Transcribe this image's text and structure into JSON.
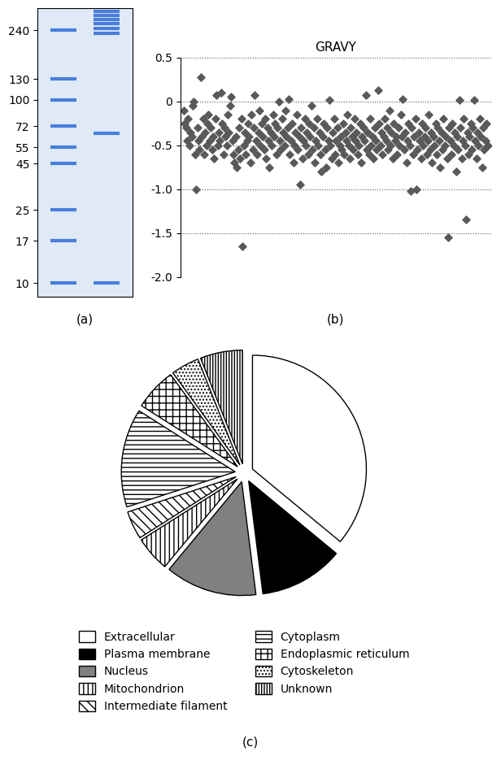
{
  "chart_data": [
    {
      "type": "gel",
      "caption": "(a)",
      "ladder": [
        240,
        130,
        100,
        72,
        55,
        45,
        25,
        17,
        10
      ],
      "sample_bands": [
        305,
        290,
        275,
        260,
        245,
        230,
        66,
        10
      ],
      "ylim": [
        8.4,
        316
      ],
      "yticks": [
        240,
        130,
        100,
        72,
        55,
        45,
        25,
        17,
        10
      ],
      "log": "y",
      "tick_labels": "y",
      "color": "#2f6bd6"
    },
    {
      "type": "scatter",
      "caption": "(b)",
      "title": "GRAVY",
      "values": [
        -0.1,
        -0.25,
        -0.3,
        -0.45,
        -0.2,
        -0.5,
        -0.35,
        -0.4,
        -0.05,
        0.0,
        -0.6,
        -1.0,
        -0.3,
        -0.45,
        -0.55,
        0.28,
        -0.4,
        -0.2,
        -0.6,
        -0.35,
        -0.5,
        -0.25,
        -0.15,
        -0.45,
        -0.3,
        -0.55,
        -0.4,
        -0.65,
        -0.2,
        0.07,
        -0.5,
        -0.35,
        -0.45,
        0.1,
        -0.25,
        -0.6,
        -0.3,
        -0.4,
        -0.5,
        -0.15,
        -0.35,
        -0.05,
        0.05,
        -0.45,
        -0.6,
        -0.7,
        -0.4,
        -0.75,
        -0.55,
        -0.3,
        -0.65,
        -0.2,
        -1.65,
        -0.5,
        -0.35,
        -0.6,
        -0.45,
        -0.25,
        -0.4,
        -0.7,
        -0.15,
        -0.55,
        -0.3,
        0.07,
        -0.45,
        -0.6,
        -0.35,
        -0.1,
        -0.5,
        -0.25,
        -0.4,
        -0.55,
        -0.2,
        -0.65,
        -0.3,
        -0.45,
        -0.75,
        -0.35,
        -0.5,
        -0.15,
        -0.4,
        -0.25,
        -0.6,
        -0.3,
        0.0,
        -0.45,
        -0.55,
        -0.2,
        -0.35,
        -0.5,
        -0.1,
        -0.4,
        -0.3,
        0.03,
        -0.6,
        -0.45,
        -0.25,
        -0.7,
        -0.5,
        -0.35,
        -0.15,
        -0.55,
        -0.4,
        -0.95,
        -0.3,
        -0.65,
        -0.45,
        -0.2,
        -0.5,
        -0.35,
        -0.6,
        -0.25,
        -0.4,
        -0.05,
        -0.55,
        -0.3,
        -0.7,
        -0.45,
        -0.2,
        -0.5,
        -0.35,
        -0.6,
        -0.8,
        -0.4,
        -0.25,
        -0.55,
        -0.75,
        -0.3,
        -0.45,
        0.02,
        -0.5,
        -0.65,
        -0.35,
        -0.2,
        -0.6,
        -0.45,
        -0.3,
        -0.7,
        -0.5,
        -0.4,
        -0.55,
        -0.25,
        -0.6,
        -0.35,
        -0.45,
        -0.15,
        -0.5,
        -0.65,
        -0.3,
        -0.4,
        -0.55,
        -0.2,
        -0.45,
        -0.35,
        -0.6,
        -0.5,
        -0.25,
        -0.7,
        -0.4,
        -0.3,
        -0.45,
        0.07,
        -0.55,
        -0.35,
        -0.6,
        -0.2,
        -0.5,
        -0.4,
        -0.65,
        -0.3,
        -0.45,
        -0.55,
        0.13,
        -0.25,
        -0.5,
        -0.35,
        -0.6,
        -0.4,
        -0.2,
        -0.45,
        -0.3,
        -0.55,
        -0.1,
        -0.5,
        -0.35,
        -0.65,
        -0.25,
        -0.45,
        -0.4,
        -0.6,
        -0.3,
        -0.5,
        -0.15,
        -0.4,
        0.03,
        -0.55,
        -0.35,
        -0.7,
        -0.45,
        -0.25,
        -0.5,
        -1.02,
        -0.3,
        -0.6,
        -0.4,
        -0.2,
        -1.0,
        -0.55,
        -0.35,
        -0.45,
        -0.65,
        -0.25,
        -0.5,
        -0.4,
        -0.3,
        -0.6,
        -0.45,
        -0.15,
        -0.55,
        -0.35,
        -0.7,
        -0.4,
        -0.5,
        -0.25,
        -0.6,
        -0.3,
        -0.45,
        -0.75,
        -0.35,
        -0.55,
        -0.2,
        -0.5,
        -0.4,
        -0.65,
        -1.55,
        -0.3,
        -0.45,
        -0.6,
        -0.25,
        -0.5,
        -0.35,
        -0.8,
        -0.4,
        -0.55,
        0.02,
        -0.3,
        -0.65,
        -0.45,
        -0.2,
        -0.5,
        -1.35,
        -0.35,
        -0.6,
        -0.4,
        -0.25,
        -0.55,
        -0.3,
        0.02,
        -0.45,
        -0.65,
        -0.35,
        -0.5,
        -0.2,
        -0.4,
        -0.75,
        -0.3,
        -0.55,
        -0.45,
        -0.25,
        -0.5
      ],
      "ylim": [
        -2.0,
        0.5
      ],
      "yticks": [
        -2.0,
        -1.5,
        -1.0,
        -0.5,
        0,
        0.5
      ],
      "grid": true,
      "tick_labels": "y",
      "color": "#595959",
      "marker": "diamond"
    },
    {
      "type": "pie",
      "caption": "(c)",
      "categories": [
        "Extracellular",
        "Plasma membrane",
        "Nucleus",
        "Mitochondrion",
        "Intermediate filament",
        "Cytoplasm",
        "Endoplasmic reticulum",
        "Cytoskeleton",
        "Unknown"
      ],
      "values": [
        36,
        12,
        13,
        5,
        4,
        14,
        6,
        4,
        6
      ],
      "colors": [
        "#ffffff",
        "#000000",
        "#808080",
        "#ffffff",
        "#ffffff",
        "#ffffff",
        "#ffffff",
        "#ffffff",
        "#ffffff"
      ],
      "legend": "upper center"
    }
  ]
}
